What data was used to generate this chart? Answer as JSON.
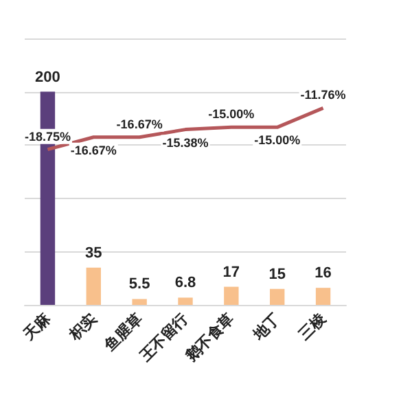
{
  "chart_data": {
    "type": "bar",
    "categories": [
      "天麻",
      "枳实",
      "鱼腥草",
      "王不留行",
      "鹅不食草",
      "地丁",
      "三棱"
    ],
    "series": [
      {
        "values": [
          200,
          35,
          5.5,
          6.8,
          17,
          15,
          16
        ],
        "colors": [
          "#5b3f7c",
          "#f8c08c",
          "#f8c08c",
          "#f8c08c",
          "#f8c08c",
          "#f8c08c",
          "#f8c08c"
        ]
      },
      {
        "type": "line",
        "axis": "y2",
        "color": "#b5575a",
        "values": [
          -18.75,
          -16.67,
          -16.67,
          -15.38,
          -15.0,
          -15.0,
          -11.76
        ],
        "value_labels": [
          "-18.75%",
          "-16.67%",
          "-16.67%",
          "-15.38%",
          "-15.00%",
          "-15.00%",
          "-11.76%"
        ]
      }
    ],
    "ylim": [
      0,
      250
    ],
    "yticks": [
      0,
      50,
      100,
      150,
      200,
      250
    ],
    "y2lim": [
      -45,
      0
    ],
    "grid": "y",
    "tick_labels": "x",
    "data_labels": true,
    "marker": "none"
  }
}
